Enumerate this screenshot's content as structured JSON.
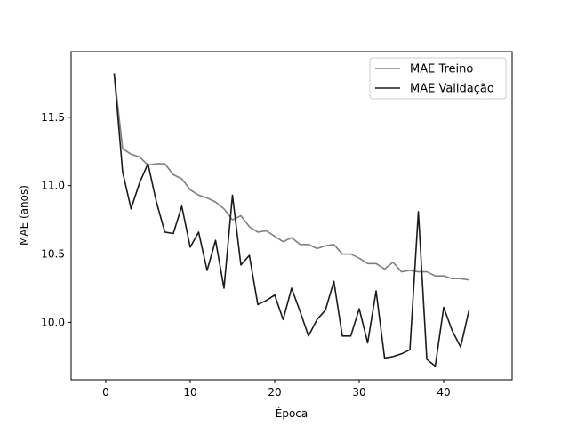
{
  "chart_data": {
    "type": "line",
    "title": "",
    "xlabel": "Época",
    "ylabel": "MAE (anos)",
    "xlim": [
      -4.1,
      48.1
    ],
    "ylim": [
      9.58,
      11.98
    ],
    "xticks": [
      0,
      10,
      20,
      30,
      40
    ],
    "yticks": [
      10.0,
      10.5,
      11.0,
      11.5
    ],
    "grid": false,
    "legend_position": "top-right",
    "x": [
      1,
      2,
      3,
      4,
      5,
      6,
      7,
      8,
      9,
      10,
      11,
      12,
      13,
      14,
      15,
      16,
      17,
      18,
      19,
      20,
      21,
      22,
      23,
      24,
      25,
      26,
      27,
      28,
      29,
      30,
      31,
      32,
      33,
      34,
      35,
      36,
      37,
      38,
      39,
      40,
      41,
      42,
      43
    ],
    "series": [
      {
        "name": "MAE Treino",
        "color": "#808080",
        "values": [
          11.82,
          11.27,
          11.23,
          11.21,
          11.15,
          11.16,
          11.16,
          11.08,
          11.05,
          10.97,
          10.93,
          10.91,
          10.88,
          10.83,
          10.75,
          10.78,
          10.7,
          10.66,
          10.67,
          10.63,
          10.59,
          10.62,
          10.57,
          10.57,
          10.54,
          10.56,
          10.57,
          10.5,
          10.5,
          10.47,
          10.43,
          10.43,
          10.39,
          10.44,
          10.37,
          10.38,
          10.37,
          10.37,
          10.34,
          10.34,
          10.32,
          10.32,
          10.31
        ]
      },
      {
        "name": "MAE Validação",
        "color": "#1a1a1a",
        "values": [
          11.82,
          11.1,
          10.83,
          11.02,
          11.16,
          10.88,
          10.66,
          10.65,
          10.85,
          10.55,
          10.66,
          10.38,
          10.6,
          10.25,
          10.93,
          10.42,
          10.49,
          10.13,
          10.16,
          10.2,
          10.02,
          10.25,
          10.08,
          9.9,
          10.02,
          10.09,
          10.3,
          9.9,
          9.9,
          10.1,
          9.85,
          10.23,
          9.74,
          9.75,
          9.77,
          9.8,
          10.81,
          9.73,
          9.68,
          10.11,
          9.94,
          9.82,
          10.09
        ]
      }
    ]
  }
}
